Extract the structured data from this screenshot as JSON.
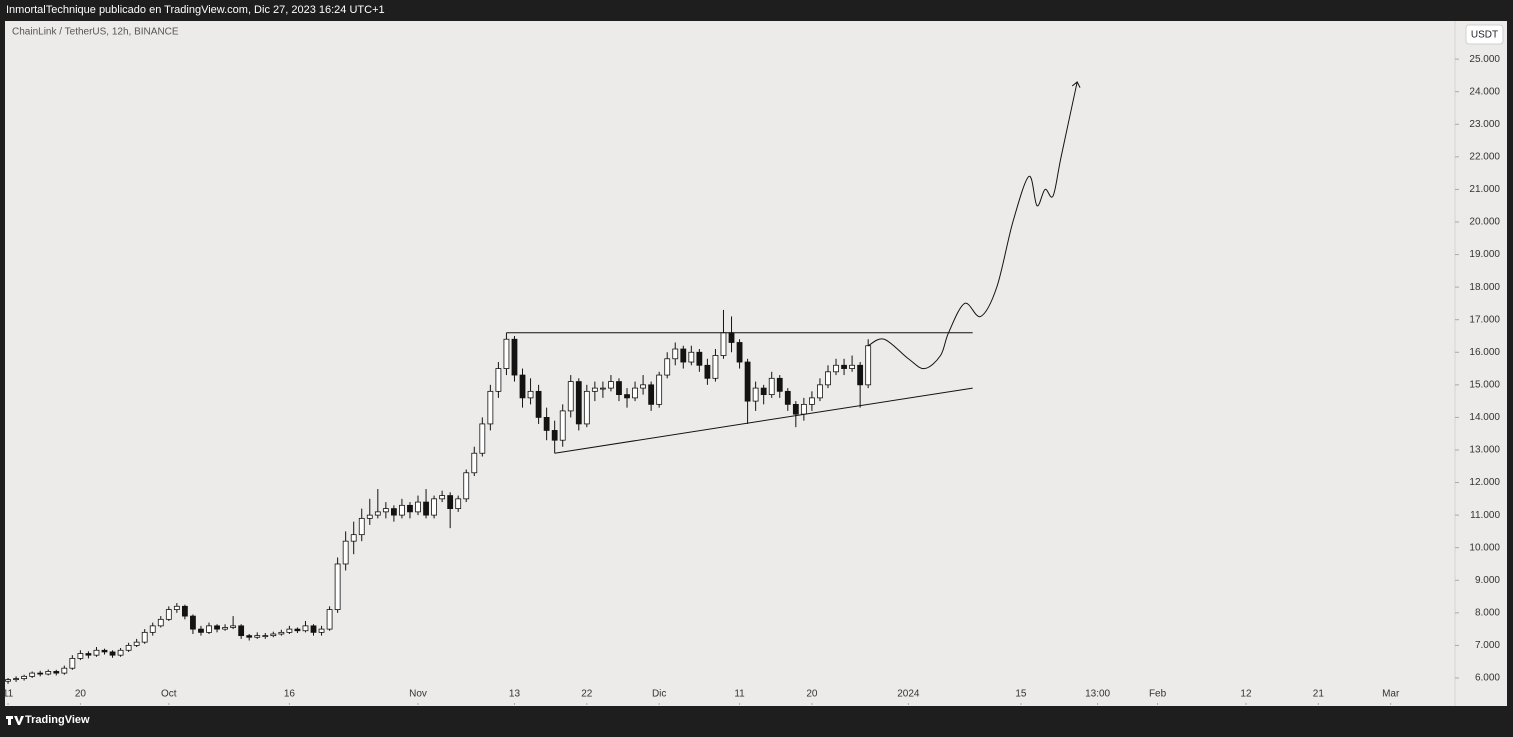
{
  "chart_data": {
    "type": "candlestick",
    "caption": "InmortalTechnique publicado en TradingView.com, Dic 27, 2023 16:24 UTC+1",
    "title": "ChainLink / TetherUS, 12h, BINANCE",
    "currency": "USDT",
    "brand": "TradingView",
    "up_color": "#ffffff",
    "down_color": "#131313",
    "wick_color": "#131313",
    "grid": false,
    "xlim": [
      "2023-09-10",
      "2024-03-09"
    ],
    "xticks": [
      {
        "value": "2023-09-11",
        "label": "11"
      },
      {
        "value": "2023-09-20",
        "label": "20"
      },
      {
        "value": "2023-10-01",
        "label": "Oct"
      },
      {
        "value": "2023-10-16",
        "label": "16"
      },
      {
        "value": "2023-11-01",
        "label": "Nov"
      },
      {
        "value": "2023-11-13",
        "label": "13"
      },
      {
        "value": "2023-11-22",
        "label": "22"
      },
      {
        "value": "2023-12-01",
        "label": "Dic"
      },
      {
        "value": "2023-12-11",
        "label": "11"
      },
      {
        "value": "2023-12-20",
        "label": "20"
      },
      {
        "value": "2024-01-01",
        "label": "2024"
      },
      {
        "value": "2024-01-15",
        "label": "15"
      },
      {
        "value": "2024-01-24T13:00",
        "label": "13:00"
      },
      {
        "value": "2024-02-01",
        "label": "Feb"
      },
      {
        "value": "2024-02-12",
        "label": "12"
      },
      {
        "value": "2024-02-21",
        "label": "21"
      },
      {
        "value": "2024-03-01",
        "label": "Mar"
      }
    ],
    "ylim": [
      5.17,
      26.14
    ],
    "yticks": [
      {
        "value": 6,
        "label": "6.000"
      },
      {
        "value": 7,
        "label": "7.000"
      },
      {
        "value": 8,
        "label": "8.000"
      },
      {
        "value": 9,
        "label": "9.000"
      },
      {
        "value": 10,
        "label": "10.000"
      },
      {
        "value": 11,
        "label": "11.000"
      },
      {
        "value": 12,
        "label": "12.000"
      },
      {
        "value": 13,
        "label": "13.000"
      },
      {
        "value": 14,
        "label": "14.000"
      },
      {
        "value": 15,
        "label": "15.000"
      },
      {
        "value": 16,
        "label": "16.000"
      },
      {
        "value": 17,
        "label": "17.000"
      },
      {
        "value": 18,
        "label": "18.000"
      },
      {
        "value": 19,
        "label": "19.000"
      },
      {
        "value": 20,
        "label": "20.000"
      },
      {
        "value": 21,
        "label": "21.000"
      },
      {
        "value": 22,
        "label": "22.000"
      },
      {
        "value": 23,
        "label": "23.000"
      },
      {
        "value": 24,
        "label": "24.000"
      },
      {
        "value": 25,
        "label": "25.000"
      }
    ],
    "x": [
      "2023-09-11",
      "2023-09-12",
      "2023-09-13",
      "2023-09-14",
      "2023-09-15",
      "2023-09-16",
      "2023-09-17",
      "2023-09-18",
      "2023-09-19",
      "2023-09-20",
      "2023-09-21",
      "2023-09-22",
      "2023-09-23",
      "2023-09-24",
      "2023-09-25",
      "2023-09-26",
      "2023-09-27",
      "2023-09-28",
      "2023-09-29",
      "2023-09-30",
      "2023-10-01",
      "2023-10-02",
      "2023-10-03",
      "2023-10-04",
      "2023-10-05",
      "2023-10-06",
      "2023-10-07",
      "2023-10-08",
      "2023-10-09",
      "2023-10-10",
      "2023-10-11",
      "2023-10-12",
      "2023-10-13",
      "2023-10-14",
      "2023-10-15",
      "2023-10-16",
      "2023-10-17",
      "2023-10-18",
      "2023-10-19",
      "2023-10-20",
      "2023-10-21",
      "2023-10-22",
      "2023-10-23",
      "2023-10-24",
      "2023-10-25",
      "2023-10-26",
      "2023-10-27",
      "2023-10-28",
      "2023-10-29",
      "2023-10-30",
      "2023-10-31",
      "2023-11-01",
      "2023-11-02",
      "2023-11-03",
      "2023-11-04",
      "2023-11-05",
      "2023-11-06",
      "2023-11-07",
      "2023-11-08",
      "2023-11-09",
      "2023-11-10",
      "2023-11-11",
      "2023-11-12",
      "2023-11-13",
      "2023-11-14",
      "2023-11-15",
      "2023-11-16",
      "2023-11-17",
      "2023-11-18",
      "2023-11-19",
      "2023-11-20",
      "2023-11-21",
      "2023-11-22",
      "2023-11-23",
      "2023-11-24",
      "2023-11-25",
      "2023-11-26",
      "2023-11-27",
      "2023-11-28",
      "2023-11-29",
      "2023-11-30",
      "2023-12-01",
      "2023-12-02",
      "2023-12-03",
      "2023-12-04",
      "2023-12-05",
      "2023-12-06",
      "2023-12-07",
      "2023-12-08",
      "2023-12-09",
      "2023-12-10",
      "2023-12-11",
      "2023-12-12",
      "2023-12-13",
      "2023-12-14",
      "2023-12-15",
      "2023-12-16",
      "2023-12-17",
      "2023-12-18",
      "2023-12-19",
      "2023-12-20",
      "2023-12-21",
      "2023-12-22",
      "2023-12-23",
      "2023-12-24",
      "2023-12-25",
      "2023-12-26",
      "2023-12-27"
    ],
    "ohlc": [
      [
        5.9,
        6.0,
        5.82,
        5.95
      ],
      [
        5.95,
        6.05,
        5.88,
        5.98
      ],
      [
        5.98,
        6.1,
        5.92,
        6.05
      ],
      [
        6.05,
        6.2,
        6.0,
        6.15
      ],
      [
        6.15,
        6.22,
        6.05,
        6.12
      ],
      [
        6.12,
        6.26,
        6.08,
        6.2
      ],
      [
        6.2,
        6.25,
        6.08,
        6.15
      ],
      [
        6.15,
        6.38,
        6.1,
        6.3
      ],
      [
        6.3,
        6.7,
        6.25,
        6.6
      ],
      [
        6.6,
        6.85,
        6.55,
        6.75
      ],
      [
        6.75,
        6.82,
        6.6,
        6.7
      ],
      [
        6.7,
        6.95,
        6.65,
        6.85
      ],
      [
        6.85,
        6.9,
        6.72,
        6.8
      ],
      [
        6.8,
        6.85,
        6.62,
        6.7
      ],
      [
        6.7,
        6.92,
        6.65,
        6.85
      ],
      [
        6.85,
        7.08,
        6.8,
        7.0
      ],
      [
        7.0,
        7.2,
        6.95,
        7.1
      ],
      [
        7.1,
        7.5,
        7.05,
        7.4
      ],
      [
        7.4,
        7.7,
        7.3,
        7.6
      ],
      [
        7.6,
        7.9,
        7.55,
        7.8
      ],
      [
        7.8,
        8.2,
        7.75,
        8.1
      ],
      [
        8.1,
        8.3,
        8.0,
        8.2
      ],
      [
        8.2,
        8.25,
        7.8,
        7.9
      ],
      [
        7.9,
        7.95,
        7.35,
        7.5
      ],
      [
        7.5,
        7.6,
        7.3,
        7.4
      ],
      [
        7.4,
        7.7,
        7.35,
        7.6
      ],
      [
        7.6,
        7.65,
        7.4,
        7.5
      ],
      [
        7.5,
        7.65,
        7.45,
        7.55
      ],
      [
        7.55,
        7.9,
        7.5,
        7.6
      ],
      [
        7.6,
        7.65,
        7.2,
        7.3
      ],
      [
        7.3,
        7.35,
        7.15,
        7.25
      ],
      [
        7.25,
        7.4,
        7.2,
        7.3
      ],
      [
        7.3,
        7.38,
        7.2,
        7.3
      ],
      [
        7.3,
        7.42,
        7.25,
        7.35
      ],
      [
        7.35,
        7.48,
        7.3,
        7.4
      ],
      [
        7.4,
        7.6,
        7.35,
        7.5
      ],
      [
        7.5,
        7.55,
        7.38,
        7.45
      ],
      [
        7.45,
        7.75,
        7.4,
        7.6
      ],
      [
        7.6,
        7.65,
        7.3,
        7.4
      ],
      [
        7.4,
        7.6,
        7.3,
        7.5
      ],
      [
        7.5,
        8.2,
        7.45,
        8.1
      ],
      [
        8.1,
        9.7,
        8.0,
        9.5
      ],
      [
        9.5,
        10.5,
        9.3,
        10.2
      ],
      [
        10.2,
        10.8,
        9.8,
        10.4
      ],
      [
        10.4,
        11.2,
        10.2,
        10.9
      ],
      [
        10.9,
        11.5,
        10.7,
        11.0
      ],
      [
        11.0,
        11.8,
        10.9,
        11.1
      ],
      [
        11.1,
        11.4,
        10.9,
        11.2
      ],
      [
        11.2,
        11.3,
        10.8,
        11.0
      ],
      [
        11.0,
        11.5,
        10.9,
        11.3
      ],
      [
        11.3,
        11.4,
        10.9,
        11.1
      ],
      [
        11.1,
        11.6,
        11.0,
        11.4
      ],
      [
        11.4,
        11.8,
        10.9,
        11.0
      ],
      [
        11.0,
        11.6,
        10.9,
        11.5
      ],
      [
        11.5,
        11.75,
        11.4,
        11.6
      ],
      [
        11.6,
        11.7,
        10.6,
        11.2
      ],
      [
        11.2,
        11.6,
        11.1,
        11.5
      ],
      [
        11.5,
        12.4,
        11.4,
        12.3
      ],
      [
        12.3,
        13.1,
        12.2,
        12.9
      ],
      [
        12.9,
        14.0,
        12.8,
        13.8
      ],
      [
        13.8,
        15.0,
        13.6,
        14.8
      ],
      [
        14.8,
        15.7,
        14.6,
        15.5
      ],
      [
        15.5,
        16.6,
        15.3,
        16.4
      ],
      [
        16.4,
        16.5,
        15.1,
        15.3
      ],
      [
        15.3,
        15.5,
        14.3,
        14.6
      ],
      [
        14.6,
        15.2,
        14.4,
        14.8
      ],
      [
        14.8,
        15.0,
        13.8,
        14.0
      ],
      [
        14.0,
        14.3,
        13.3,
        13.6
      ],
      [
        13.6,
        13.9,
        12.9,
        13.3
      ],
      [
        13.3,
        14.4,
        13.1,
        14.2
      ],
      [
        14.2,
        15.3,
        14.0,
        15.1
      ],
      [
        15.1,
        15.2,
        13.6,
        13.8
      ],
      [
        13.8,
        15.0,
        13.7,
        14.8
      ],
      [
        14.8,
        15.1,
        14.5,
        14.9
      ],
      [
        14.9,
        15.1,
        14.6,
        14.9
      ],
      [
        14.9,
        15.3,
        14.8,
        15.1
      ],
      [
        15.1,
        15.2,
        14.5,
        14.7
      ],
      [
        14.7,
        14.9,
        14.3,
        14.6
      ],
      [
        14.6,
        15.1,
        14.5,
        14.9
      ],
      [
        14.9,
        15.3,
        14.7,
        15.0
      ],
      [
        15.0,
        15.1,
        14.2,
        14.4
      ],
      [
        14.4,
        15.4,
        14.3,
        15.3
      ],
      [
        15.3,
        16.0,
        15.2,
        15.8
      ],
      [
        15.8,
        16.3,
        15.6,
        16.1
      ],
      [
        16.1,
        16.2,
        15.5,
        15.7
      ],
      [
        15.7,
        16.2,
        15.6,
        16.0
      ],
      [
        16.0,
        16.1,
        15.4,
        15.6
      ],
      [
        15.6,
        15.8,
        15.0,
        15.2
      ],
      [
        15.2,
        16.1,
        15.1,
        15.9
      ],
      [
        15.9,
        17.3,
        15.8,
        16.6
      ],
      [
        16.6,
        17.1,
        16.0,
        16.3
      ],
      [
        16.3,
        16.4,
        15.5,
        15.7
      ],
      [
        15.7,
        15.8,
        13.8,
        14.5
      ],
      [
        14.5,
        15.1,
        14.2,
        14.9
      ],
      [
        14.9,
        15.0,
        14.4,
        14.7
      ],
      [
        14.7,
        15.4,
        14.6,
        15.2
      ],
      [
        15.2,
        15.3,
        14.6,
        14.8
      ],
      [
        14.8,
        14.9,
        14.2,
        14.4
      ],
      [
        14.4,
        14.5,
        13.7,
        14.1
      ],
      [
        14.1,
        14.6,
        13.9,
        14.4
      ],
      [
        14.4,
        14.8,
        14.2,
        14.6
      ],
      [
        14.6,
        15.2,
        14.5,
        15.0
      ],
      [
        15.0,
        15.6,
        14.9,
        15.4
      ],
      [
        15.4,
        15.8,
        15.3,
        15.6
      ],
      [
        15.6,
        15.8,
        15.3,
        15.5
      ],
      [
        15.5,
        15.9,
        15.4,
        15.6
      ],
      [
        15.6,
        15.7,
        14.3,
        15.0
      ],
      [
        15.0,
        16.4,
        14.9,
        16.2
      ]
    ],
    "drawings": [
      {
        "kind": "line",
        "x": [
          "2023-11-12",
          "2024-01-09"
        ],
        "y": [
          16.6,
          16.6
        ]
      },
      {
        "kind": "line",
        "x": [
          "2023-11-18",
          "2024-01-09"
        ],
        "y": [
          12.9,
          14.9
        ]
      },
      {
        "kind": "arrow",
        "x": [
          "2023-12-27",
          "2023-12-29",
          "2024-01-01",
          "2024-01-03",
          "2024-01-05",
          "2024-01-06",
          "2024-01-08",
          "2024-01-10",
          "2024-01-12",
          "2024-01-14",
          "2024-01-16",
          "2024-01-17",
          "2024-01-18",
          "2024-01-19",
          "2024-01-20",
          "2024-01-22"
        ],
        "y": [
          16.2,
          16.4,
          15.8,
          15.5,
          15.9,
          16.6,
          17.5,
          17.1,
          18.0,
          20.0,
          21.4,
          20.5,
          21.0,
          20.8,
          22.0,
          24.3
        ]
      }
    ]
  }
}
